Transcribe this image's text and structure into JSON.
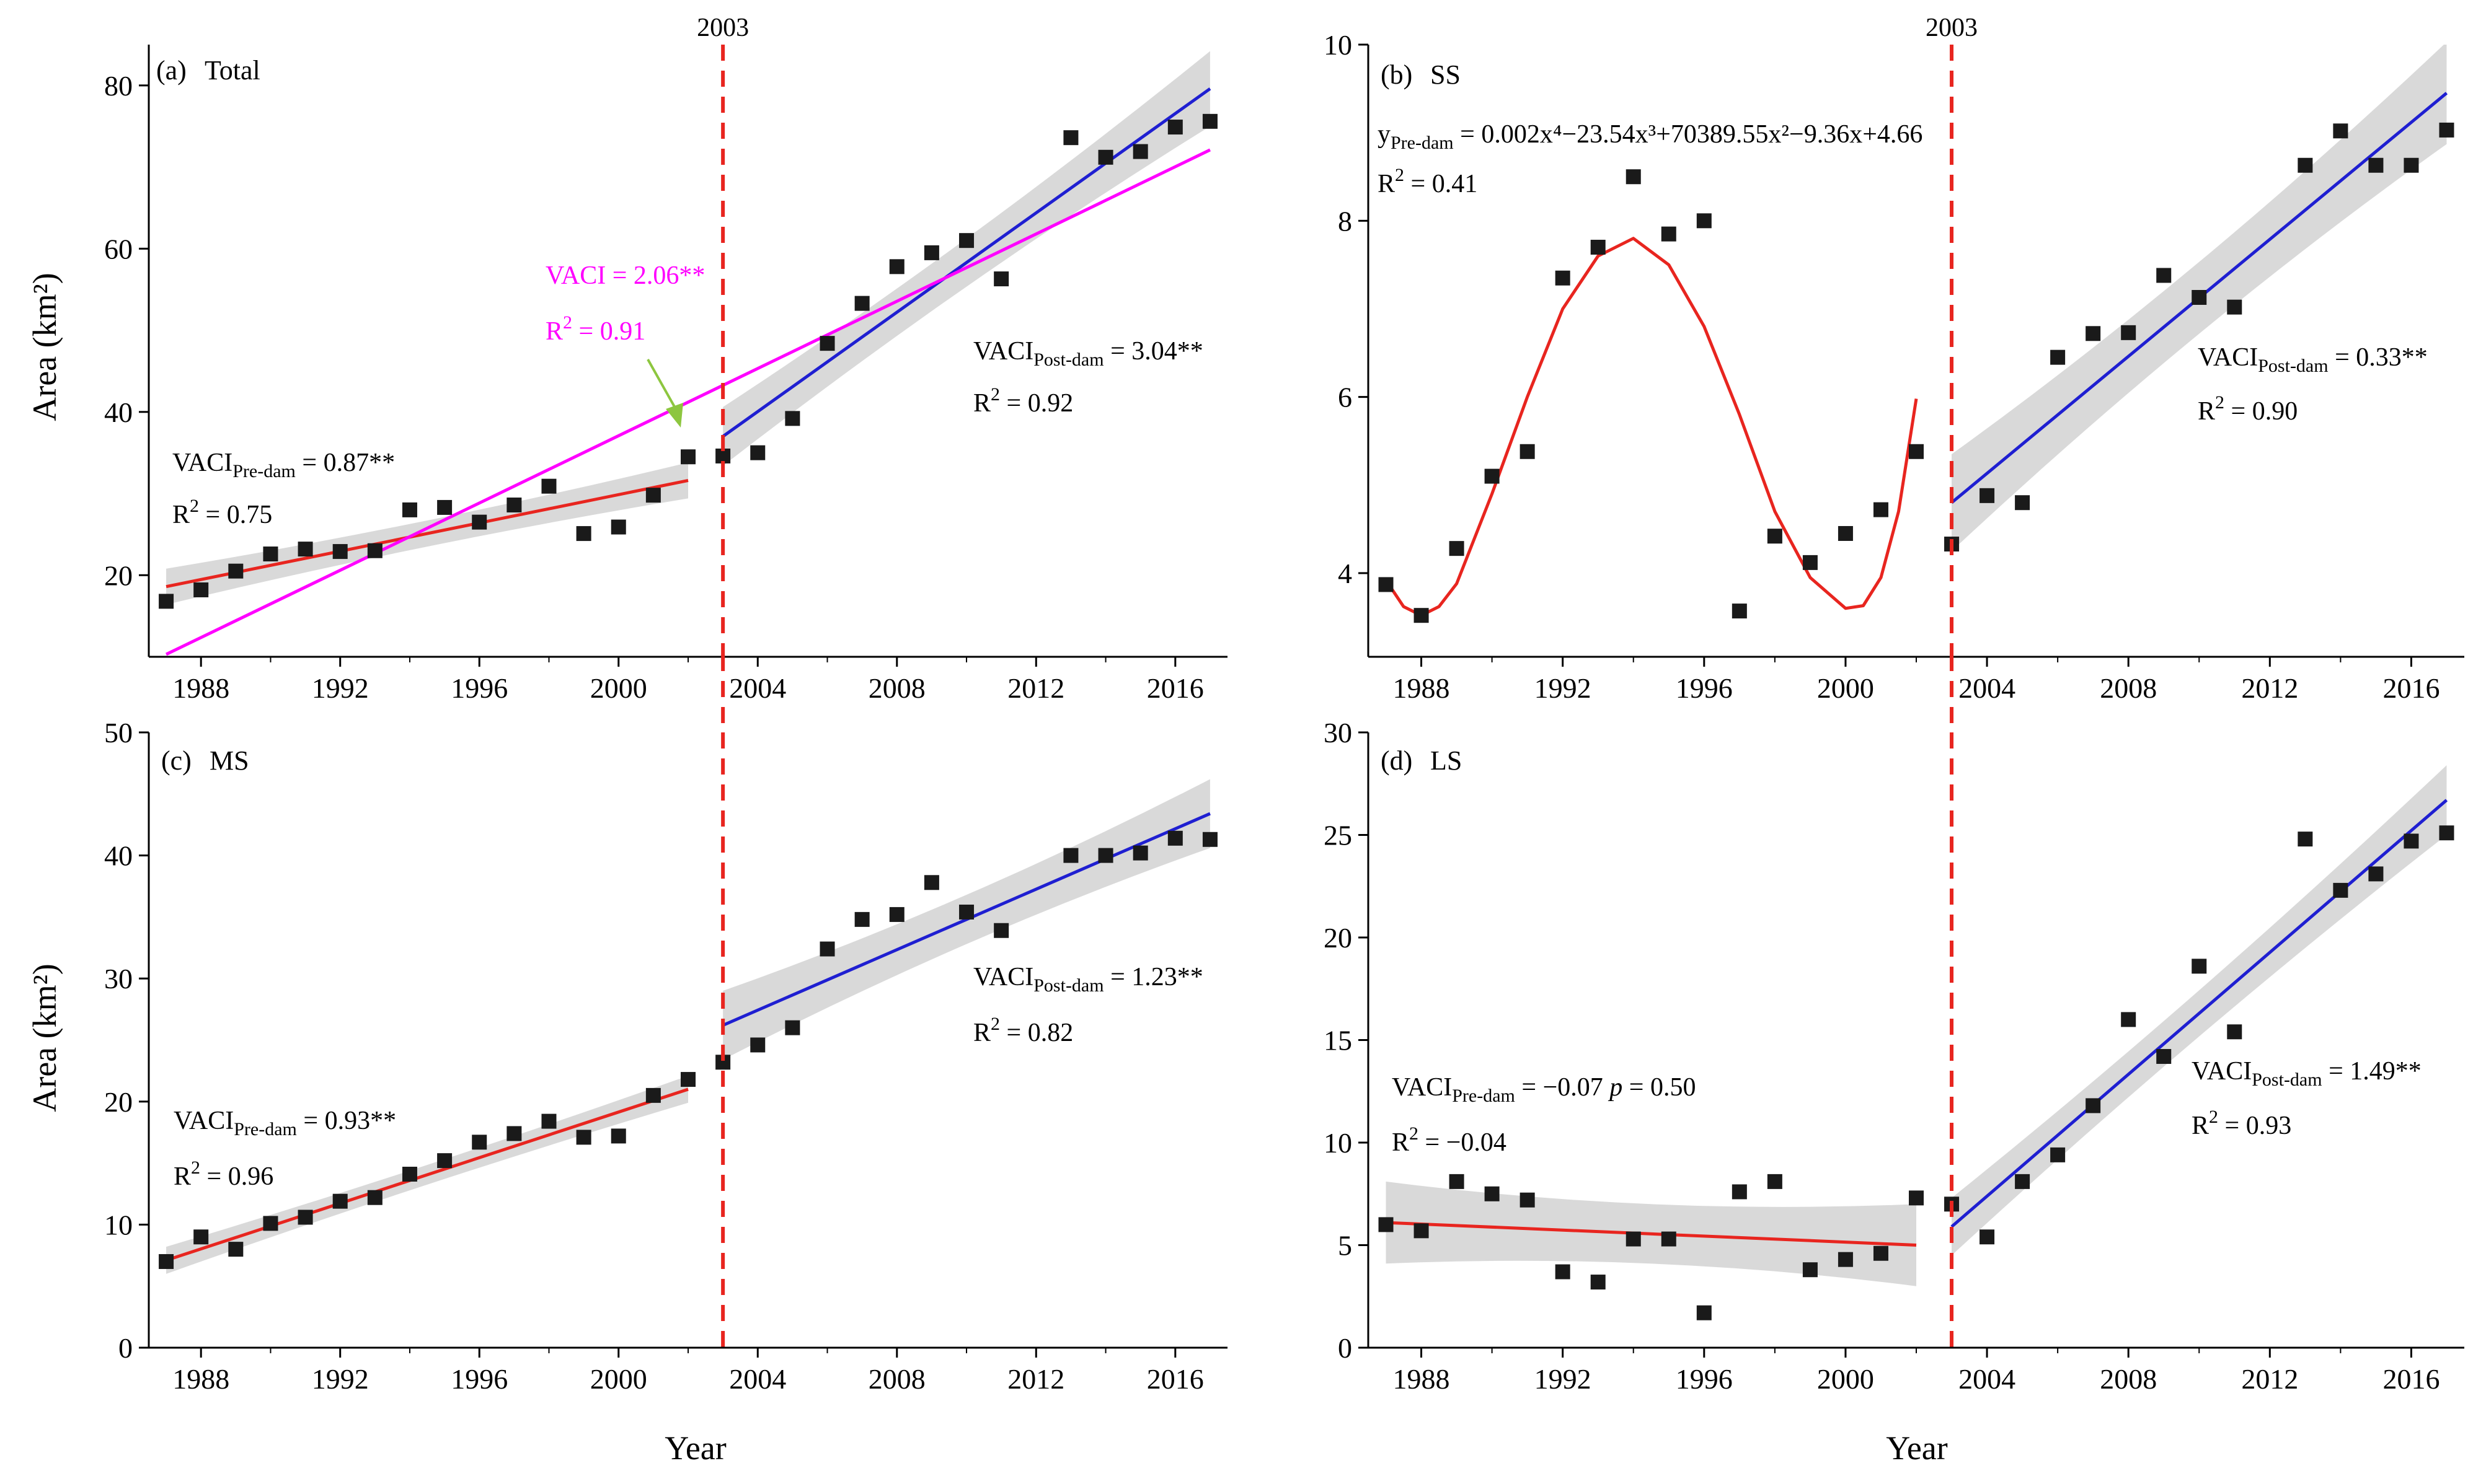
{
  "chart_data": [
    {
      "id": "a",
      "type": "scatter",
      "panel_label": "(a)",
      "title": "Total",
      "xlabel": "",
      "ylabel": "Area (km²)",
      "xlim": [
        1986.5,
        2017.5
      ],
      "ylim": [
        10,
        85
      ],
      "xticks": [
        1988,
        1992,
        1996,
        2000,
        2004,
        2008,
        2012,
        2016
      ],
      "yticks": [
        20,
        40,
        60,
        80
      ],
      "x": [
        1987,
        1988,
        1989,
        1990,
        1991,
        1992,
        1993,
        1994,
        1995,
        1996,
        1997,
        1998,
        1999,
        2000,
        2001,
        2002,
        2003,
        2004,
        2005,
        2006,
        2007,
        2008,
        2009,
        2010,
        2011,
        2013,
        2014,
        2015,
        2016,
        2017
      ],
      "values": [
        16.8,
        18.2,
        20.5,
        22.6,
        23.2,
        22.9,
        23.0,
        28.0,
        28.3,
        26.5,
        28.6,
        30.9,
        25.1,
        25.9,
        29.8,
        34.5,
        34.6,
        35.0,
        39.2,
        48.4,
        53.3,
        57.8,
        59.5,
        61.0,
        56.3,
        73.6,
        71.2,
        71.9,
        74.9,
        75.6
      ],
      "dam_year": 2003,
      "dam_year_label": "2003",
      "fits": [
        {
          "name": "pre-dam",
          "color": "#e8251f",
          "x": [
            1987,
            2002
          ],
          "y": [
            18.6,
            31.6
          ],
          "band": [
            2.2,
            1.0,
            2.2
          ]
        },
        {
          "name": "post-dam",
          "color": "#1f1fd1",
          "x": [
            2003,
            2017
          ],
          "y": [
            37.0,
            79.6
          ],
          "band": [
            3.6,
            1.8,
            4.6
          ]
        },
        {
          "name": "overall",
          "color": "#ff00ff",
          "x": [
            1987,
            2017
          ],
          "y": [
            10.3,
            72.1
          ]
        }
      ],
      "arrow_color": "#8dc63f",
      "annotations": {
        "pre": {
          "main": "VACI",
          "sub": "Pre-dam",
          "rest": " = 0.87**"
        },
        "pre_r2": {
          "main": "R",
          "sup": "2",
          "rest": " = 0.75"
        },
        "post": {
          "main": "VACI",
          "sub": "Post-dam",
          "rest": " = 3.04**"
        },
        "post_r2": {
          "main": "R",
          "sup": "2",
          "rest": " = 0.92"
        },
        "overall": {
          "main": "VACI = 2.06**"
        },
        "overall_r2": {
          "main": "R",
          "sup": "2",
          "rest": " = 0.91"
        }
      }
    },
    {
      "id": "b",
      "type": "scatter",
      "panel_label": "(b)",
      "title": "SS",
      "xlabel": "",
      "ylabel": "",
      "xlim": [
        1986.5,
        2017.5
      ],
      "ylim": [
        3.05,
        10
      ],
      "xticks": [
        1988,
        1992,
        1996,
        2000,
        2004,
        2008,
        2012,
        2016
      ],
      "yticks": [
        4,
        6,
        8,
        10
      ],
      "x": [
        1987,
        1988,
        1989,
        1990,
        1991,
        1992,
        1993,
        1994,
        1995,
        1996,
        1997,
        1998,
        1999,
        2000,
        2001,
        2002,
        2003,
        2004,
        2005,
        2006,
        2007,
        2008,
        2009,
        2010,
        2011,
        2013,
        2014,
        2015,
        2016,
        2017
      ],
      "values": [
        3.87,
        3.52,
        4.28,
        5.1,
        5.38,
        7.35,
        7.7,
        8.5,
        7.85,
        8.0,
        3.57,
        4.42,
        4.12,
        4.45,
        4.72,
        5.38,
        4.33,
        4.88,
        4.8,
        6.45,
        6.72,
        6.73,
        7.38,
        7.13,
        7.02,
        8.63,
        9.02,
        8.63,
        8.63,
        9.03
      ],
      "dam_year": 2003,
      "dam_year_label": "2003",
      "fits": [
        {
          "name": "pre-dam polynomial",
          "color": "#e8251f",
          "curve": [
            [
              1987,
              3.92
            ],
            [
              1987.5,
              3.62
            ],
            [
              1988,
              3.52
            ],
            [
              1988.5,
              3.62
            ],
            [
              1989,
              3.88
            ],
            [
              1990,
              4.9
            ],
            [
              1991,
              6.0
            ],
            [
              1992,
              7.0
            ],
            [
              1993,
              7.6
            ],
            [
              1994,
              7.8
            ],
            [
              1995,
              7.5
            ],
            [
              1996,
              6.8
            ],
            [
              1997,
              5.8
            ],
            [
              1998,
              4.7
            ],
            [
              1999,
              3.95
            ],
            [
              2000,
              3.6
            ],
            [
              2000.5,
              3.63
            ],
            [
              2001,
              3.95
            ],
            [
              2001.5,
              4.7
            ],
            [
              2002,
              5.98
            ]
          ]
        },
        {
          "name": "post-dam",
          "color": "#1f1fd1",
          "x": [
            2003,
            2017
          ],
          "y": [
            4.8,
            9.45
          ],
          "band": [
            0.55,
            0.25,
            0.58
          ]
        }
      ],
      "annotations": {
        "pre": {
          "main": "y",
          "sub": "Pre-dam",
          "rest": " = 0.002x⁴−23.54x³+70389.55x²−9.36x+4.66"
        },
        "pre_r2": {
          "main": "R",
          "sup": "2",
          "rest": " = 0.41"
        },
        "post": {
          "main": "VACI",
          "sub": "Post-dam",
          "rest": " = 0.33**"
        },
        "post_r2": {
          "main": "R",
          "sup": "2",
          "rest": " = 0.90"
        }
      }
    },
    {
      "id": "c",
      "type": "scatter",
      "panel_label": "(c)",
      "title": "MS",
      "xlabel": "Year",
      "ylabel": "Area (km²)",
      "xlim": [
        1986.5,
        2017.5
      ],
      "ylim": [
        0,
        50
      ],
      "xticks": [
        1988,
        1992,
        1996,
        2000,
        2004,
        2008,
        2012,
        2016
      ],
      "yticks": [
        0,
        10,
        20,
        30,
        40,
        50
      ],
      "x": [
        1987,
        1988,
        1989,
        1990,
        1991,
        1992,
        1993,
        1994,
        1995,
        1996,
        1997,
        1998,
        1999,
        2000,
        2001,
        2002,
        2003,
        2004,
        2005,
        2006,
        2007,
        2008,
        2009,
        2010,
        2011,
        2013,
        2014,
        2015,
        2016,
        2017
      ],
      "values": [
        7.0,
        9.0,
        8.0,
        10.1,
        10.6,
        11.9,
        12.2,
        14.1,
        15.2,
        16.7,
        17.4,
        18.4,
        17.1,
        17.2,
        20.5,
        21.8,
        23.2,
        24.6,
        26.0,
        32.4,
        34.8,
        35.2,
        37.8,
        35.4,
        33.9,
        40.0,
        40.0,
        40.2,
        41.4,
        41.3
      ],
      "dam_year": 2003,
      "dam_year_label": "",
      "fits": [
        {
          "name": "pre-dam",
          "color": "#e8251f",
          "x": [
            1987,
            2002
          ],
          "y": [
            7.1,
            21.0
          ],
          "band": [
            1.1,
            0.5,
            1.1
          ]
        },
        {
          "name": "post-dam",
          "color": "#1f1fd1",
          "x": [
            2003,
            2017
          ],
          "y": [
            26.2,
            43.4
          ],
          "band": [
            2.8,
            1.2,
            2.8
          ]
        }
      ],
      "annotations": {
        "pre": {
          "main": "VACI",
          "sub": "Pre-dam",
          "rest": " = 0.93**"
        },
        "pre_r2": {
          "main": "R",
          "sup": "2",
          "rest": " = 0.96"
        },
        "post": {
          "main": "VACI",
          "sub": "Post-dam",
          "rest": " = 1.23**"
        },
        "post_r2": {
          "main": "R",
          "sup": "2",
          "rest": " = 0.82"
        }
      }
    },
    {
      "id": "d",
      "type": "scatter",
      "panel_label": "(d)",
      "title": "LS",
      "xlabel": "Year",
      "ylabel": "",
      "xlim": [
        1986.5,
        2017.5
      ],
      "ylim": [
        0,
        30
      ],
      "xticks": [
        1988,
        1992,
        1996,
        2000,
        2004,
        2008,
        2012,
        2016
      ],
      "yticks": [
        0,
        5,
        10,
        15,
        20,
        25,
        30
      ],
      "x": [
        1987,
        1988,
        1989,
        1990,
        1991,
        1992,
        1993,
        1994,
        1995,
        1996,
        1997,
        1998,
        1999,
        2000,
        2001,
        2002,
        2003,
        2004,
        2005,
        2006,
        2007,
        2008,
        2009,
        2010,
        2011,
        2013,
        2014,
        2015,
        2016,
        2017
      ],
      "values": [
        6.0,
        5.7,
        8.1,
        7.5,
        7.2,
        3.7,
        3.2,
        5.3,
        5.3,
        1.7,
        7.6,
        8.1,
        3.8,
        4.3,
        4.6,
        7.3,
        7.0,
        5.4,
        8.1,
        9.4,
        11.8,
        16.0,
        14.2,
        18.6,
        15.4,
        24.8,
        22.3,
        23.1,
        24.7,
        25.1
      ],
      "dam_year": 2003,
      "dam_year_label": "",
      "fits": [
        {
          "name": "pre-dam",
          "color": "#e8251f",
          "x": [
            1987,
            2002
          ],
          "y": [
            6.1,
            5.0
          ],
          "band": [
            2.0,
            0.9,
            2.0
          ]
        },
        {
          "name": "post-dam",
          "color": "#1f1fd1",
          "x": [
            2003,
            2017
          ],
          "y": [
            5.9,
            26.7
          ],
          "band": [
            1.4,
            0.7,
            1.7
          ]
        }
      ],
      "annotations": {
        "pre": {
          "main": "VACI",
          "sub": "Pre-dam",
          "rest": " = −0.07    ",
          "italic": "p",
          "rest2": " = 0.50"
        },
        "pre_r2": {
          "main": "R",
          "sup": "2",
          "rest": " = −0.04"
        },
        "post": {
          "main": "VACI",
          "sub": "Post-dam",
          "rest": " = 1.49**"
        },
        "post_r2": {
          "main": "R",
          "sup": "2",
          "rest": " = 0.93"
        }
      }
    }
  ],
  "colors": {
    "points": "#1a1a1a",
    "band": "#d9d9d9",
    "dam_line": "#e8251f",
    "axis": "#000000"
  }
}
